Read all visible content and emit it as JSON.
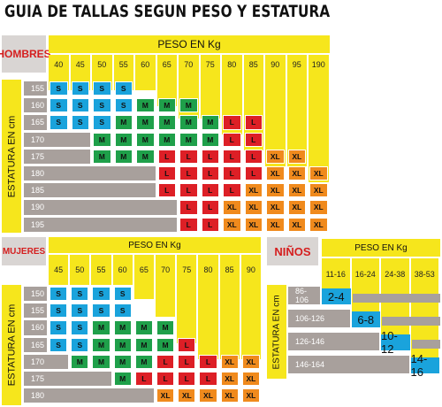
{
  "title": "GUIA DE TALLAS SEGUN PESO Y ESTATURA",
  "colors": {
    "S": "#1aa3dc",
    "M": "#1fa04a",
    "L": "#dd1f26",
    "XL": "#f08a1d",
    "yellow": "#f6e61c",
    "grey": "#a8a09c",
    "label_red": "#d51e1e"
  },
  "hombres": {
    "label": "HOMBRES",
    "peso_label": "PESO EN Kg",
    "estatura_label": "ESTATURA EN cm",
    "weights": [
      "40",
      "45",
      "50",
      "55",
      "60",
      "65",
      "70",
      "75",
      "80",
      "85",
      "90",
      "95",
      "190"
    ],
    "heights": [
      "155",
      "160",
      "165",
      "170",
      "175",
      "180",
      "185",
      "190",
      "195"
    ],
    "rows": [
      [
        "S",
        "S",
        "S",
        "S",
        "",
        "",
        "",
        "",
        "",
        "",
        "",
        "",
        ""
      ],
      [
        "S",
        "S",
        "S",
        "S",
        "M",
        "M",
        "M",
        "",
        "",
        "",
        "",
        "",
        ""
      ],
      [
        "S",
        "S",
        "S",
        "M",
        "M",
        "M",
        "M",
        "M",
        "L",
        "L",
        "",
        "",
        ""
      ],
      [
        "",
        "",
        "M",
        "M",
        "M",
        "M",
        "M",
        "M",
        "L",
        "L",
        "",
        "",
        ""
      ],
      [
        "",
        "",
        "M",
        "M",
        "M",
        "L",
        "L",
        "L",
        "L",
        "L",
        "XL",
        "XL",
        ""
      ],
      [
        "",
        "",
        "",
        "",
        "",
        "L",
        "L",
        "L",
        "L",
        "L",
        "XL",
        "XL",
        "XL"
      ],
      [
        "",
        "",
        "",
        "",
        "",
        "L",
        "L",
        "L",
        "L",
        "XL",
        "XL",
        "XL",
        "XL"
      ],
      [
        "",
        "",
        "",
        "",
        "",
        "",
        "L",
        "L",
        "XL",
        "XL",
        "XL",
        "XL",
        "XL"
      ],
      [
        "",
        "",
        "",
        "",
        "",
        "",
        "L",
        "L",
        "XL",
        "XL",
        "XL",
        "XL",
        "XL"
      ]
    ]
  },
  "mujeres": {
    "label": "MUJERES",
    "peso_label": "PESO EN Kg",
    "estatura_label": "ESTATURA EN cm",
    "weights": [
      "45",
      "50",
      "55",
      "60",
      "65",
      "70",
      "75",
      "80",
      "85",
      "90"
    ],
    "heights": [
      "150",
      "155",
      "160",
      "165",
      "170",
      "175",
      "180"
    ],
    "rows": [
      [
        "S",
        "S",
        "S",
        "S",
        "",
        "",
        "",
        "",
        "",
        ""
      ],
      [
        "S",
        "S",
        "S",
        "S",
        "",
        "",
        "",
        "",
        "",
        ""
      ],
      [
        "S",
        "S",
        "M",
        "M",
        "M",
        "M",
        "",
        "",
        "",
        ""
      ],
      [
        "S",
        "S",
        "M",
        "M",
        "M",
        "M",
        "L",
        "",
        "",
        ""
      ],
      [
        "",
        "M",
        "M",
        "M",
        "M",
        "L",
        "L",
        "L",
        "XL",
        "XL"
      ],
      [
        "",
        "",
        "",
        "M",
        "L",
        "L",
        "L",
        "L",
        "XL",
        "XL"
      ],
      [
        "",
        "",
        "",
        "",
        "",
        "XL",
        "XL",
        "XL",
        "XL",
        "XL"
      ]
    ]
  },
  "ninos": {
    "label": "NIÑOS",
    "peso_label": "PESO EN Kg",
    "estatura_label": "ESTATURA EN cm",
    "weights": [
      "11-16",
      "16-24",
      "24-38",
      "38-53"
    ],
    "heights": [
      "86-106",
      "106-126",
      "126-146",
      "146-164"
    ],
    "sizes": [
      "2-4",
      "6-8",
      "10-12",
      "14-16"
    ]
  }
}
